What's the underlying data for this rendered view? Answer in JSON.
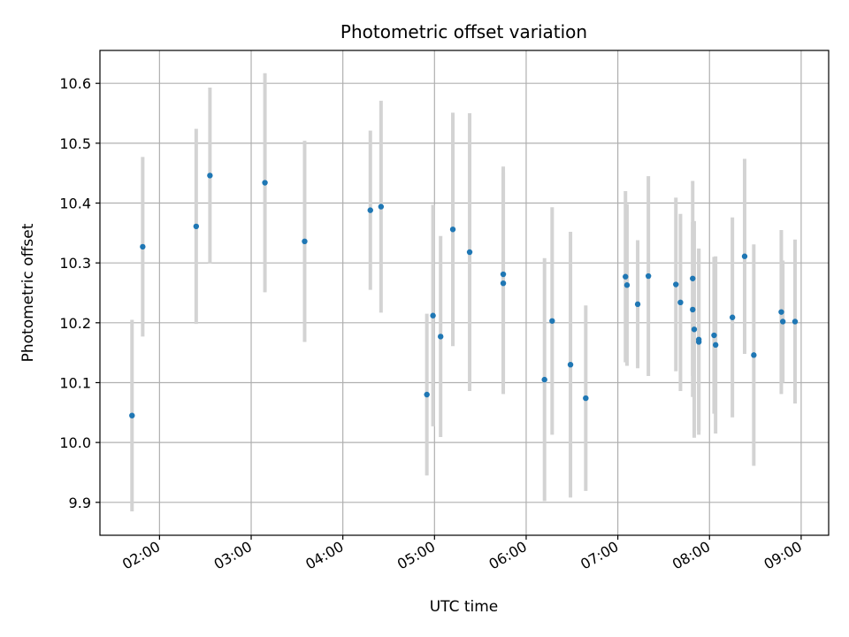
{
  "chart_data": {
    "type": "scatter",
    "title": "Photometric offset variation",
    "xlabel": "UTC time",
    "ylabel": "Photometric offset",
    "xlim": [
      "01:21",
      "09:18"
    ],
    "ylim": [
      9.845,
      10.655
    ],
    "grid": true,
    "x_ticks": [
      "02:00",
      "03:00",
      "04:00",
      "05:00",
      "06:00",
      "07:00",
      "08:00",
      "09:00"
    ],
    "y_ticks": [
      9.9,
      10.0,
      10.1,
      10.2,
      10.3,
      10.4,
      10.5,
      10.6
    ],
    "y_tick_labels": [
      "9.9",
      "10.0",
      "10.1",
      "10.2",
      "10.3",
      "10.4",
      "10.5",
      "10.6"
    ],
    "colors": {
      "point": "#1f77b4",
      "errorbar": "#d3d3d3",
      "grid": "#b0b0b0"
    },
    "points": [
      {
        "x": "01:42",
        "y": 10.045,
        "err": 0.16
      },
      {
        "x": "01:49",
        "y": 10.327,
        "err": 0.15
      },
      {
        "x": "02:24",
        "y": 10.361,
        "err": 0.163
      },
      {
        "x": "02:33",
        "y": 10.446,
        "err": 0.147
      },
      {
        "x": "03:09",
        "y": 10.434,
        "err": 0.183
      },
      {
        "x": "03:35",
        "y": 10.336,
        "err": 0.168
      },
      {
        "x": "04:18",
        "y": 10.388,
        "err": 0.133
      },
      {
        "x": "04:25",
        "y": 10.394,
        "err": 0.177
      },
      {
        "x": "04:55",
        "y": 10.08,
        "err": 0.135
      },
      {
        "x": "04:59",
        "y": 10.212,
        "err": 0.185
      },
      {
        "x": "05:04",
        "y": 10.177,
        "err": 0.168
      },
      {
        "x": "05:12",
        "y": 10.356,
        "err": 0.195
      },
      {
        "x": "05:23",
        "y": 10.318,
        "err": 0.232
      },
      {
        "x": "05:45",
        "y": 10.281,
        "err": 0.18
      },
      {
        "x": "05:45",
        "y": 10.266,
        "err": 0.185
      },
      {
        "x": "06:12",
        "y": 10.105,
        "err": 0.203
      },
      {
        "x": "06:17",
        "y": 10.203,
        "err": 0.19
      },
      {
        "x": "06:29",
        "y": 10.13,
        "err": 0.222
      },
      {
        "x": "06:39",
        "y": 10.074,
        "err": 0.155
      },
      {
        "x": "07:05",
        "y": 10.277,
        "err": 0.143
      },
      {
        "x": "07:06",
        "y": 10.263,
        "err": 0.135
      },
      {
        "x": "07:13",
        "y": 10.231,
        "err": 0.107
      },
      {
        "x": "07:20",
        "y": 10.278,
        "err": 0.167
      },
      {
        "x": "07:38",
        "y": 10.264,
        "err": 0.145
      },
      {
        "x": "07:41",
        "y": 10.234,
        "err": 0.148
      },
      {
        "x": "07:49",
        "y": 10.274,
        "err": 0.163
      },
      {
        "x": "07:49",
        "y": 10.222,
        "err": 0.146
      },
      {
        "x": "07:50",
        "y": 10.189,
        "err": 0.181
      },
      {
        "x": "07:53",
        "y": 10.172,
        "err": 0.152
      },
      {
        "x": "07:53",
        "y": 10.168,
        "err": 0.155
      },
      {
        "x": "08:03",
        "y": 10.179,
        "err": 0.131
      },
      {
        "x": "08:04",
        "y": 10.163,
        "err": 0.148
      },
      {
        "x": "08:15",
        "y": 10.209,
        "err": 0.167
      },
      {
        "x": "08:23",
        "y": 10.311,
        "err": 0.163
      },
      {
        "x": "08:29",
        "y": 10.146,
        "err": 0.185
      },
      {
        "x": "08:47",
        "y": 10.218,
        "err": 0.137
      },
      {
        "x": "08:48",
        "y": 10.202,
        "err": 0.102
      },
      {
        "x": "08:56",
        "y": 10.202,
        "err": 0.137
      }
    ]
  }
}
